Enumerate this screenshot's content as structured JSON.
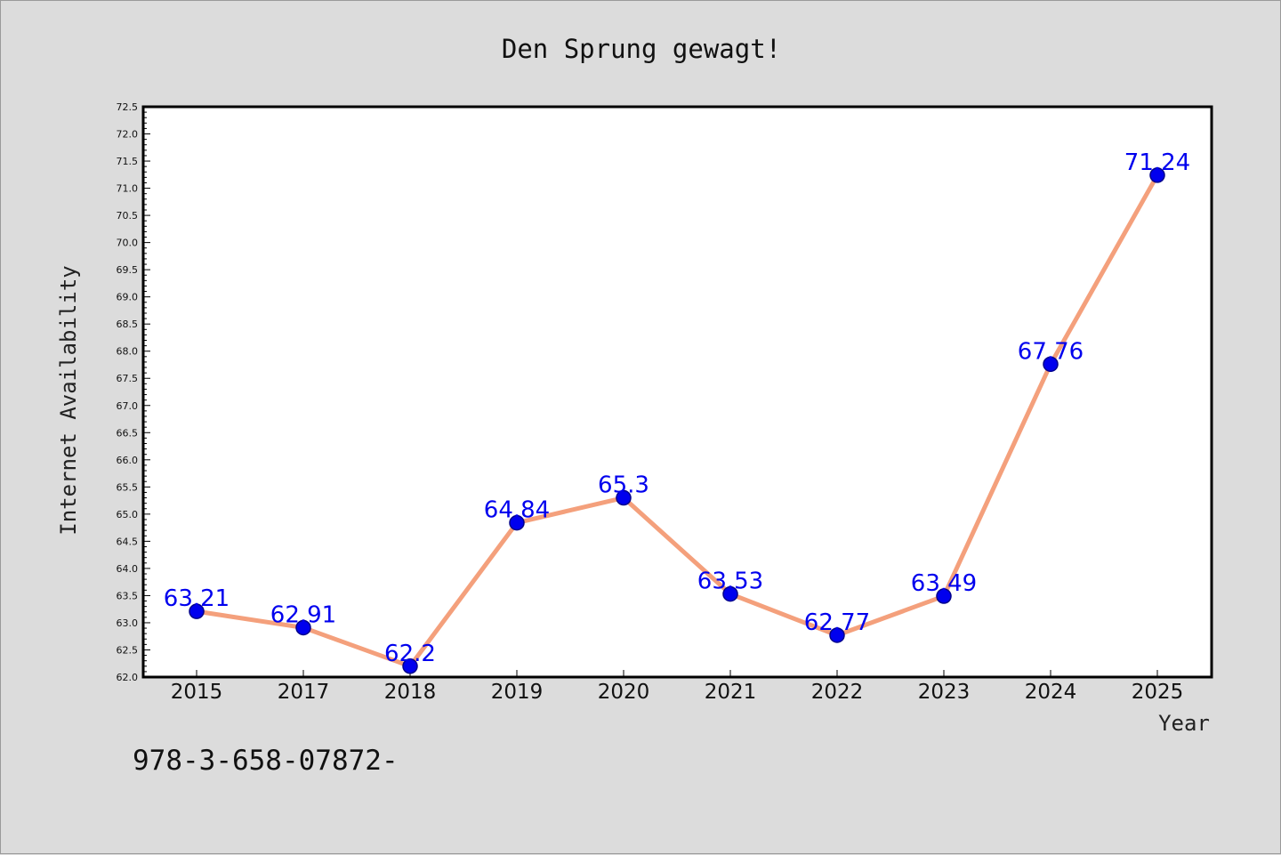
{
  "chart_data": {
    "type": "line",
    "title": "Den Sprung gewagt!",
    "xlabel": "Year",
    "ylabel": "Internet Availability",
    "categories": [
      "2015",
      "2017",
      "2018",
      "2019",
      "2020",
      "2021",
      "2022",
      "2023",
      "2024",
      "2025"
    ],
    "series": [
      {
        "values": [
          63.21,
          62.91,
          62.2,
          64.84,
          65.3,
          63.53,
          62.77,
          63.49,
          67.76,
          71.24
        ]
      }
    ],
    "data_labels": [
      "63.21",
      "62.91",
      "62.2",
      "64.84",
      "65.3",
      "63.53",
      "62.77",
      "63.49",
      "67.76",
      "71.24"
    ],
    "ylim": [
      62.0,
      72.5
    ],
    "ytick_step": 0.5,
    "grid": false,
    "colors": {
      "line": "#f4a07c",
      "marker": "#0000ee",
      "marker_edge": "#00008b",
      "label": "#0000ee",
      "plot_bg": "#ffffff",
      "figure_bg": "#dcdcdc"
    }
  },
  "footnote": "978-3-658-07872-"
}
